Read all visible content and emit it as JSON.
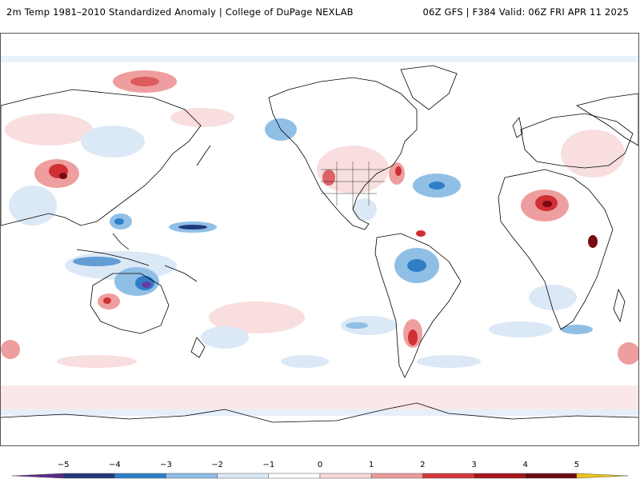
{
  "header": {
    "title_left": "2m Temp 1981–2010 Standardized Anomaly | College of DuPage NEXLAB",
    "title_right": "06Z GFS | F384 Valid: 06Z FRI APR 11 2025"
  },
  "colorbar": {
    "ticks": [
      "−5",
      "−4",
      "−3",
      "−2",
      "−1",
      "0",
      "1",
      "2",
      "3",
      "4",
      "5"
    ],
    "colors": [
      "#5a2a8a",
      "#213a78",
      "#2d7fc8",
      "#8fbde6",
      "#dce9f6",
      "#ffffff",
      "#f7d9d9",
      "#eb9b9b",
      "#d3383a",
      "#a6141b",
      "#6a0a10",
      "#f0c419"
    ]
  },
  "map": {
    "colors": {
      "warm_light": "#f8dede",
      "warm_mid": "#ee9e9e",
      "warm_strong": "#cf2f35",
      "warm_deep": "#7a0a12",
      "cool_light": "#dbe8f6",
      "cool_mid": "#90bfe6",
      "cool_strong": "#2f7ec6",
      "cool_deep": "#1f3a7c",
      "extreme_cool": "#6b3aa0",
      "coastline": "#000000"
    }
  }
}
